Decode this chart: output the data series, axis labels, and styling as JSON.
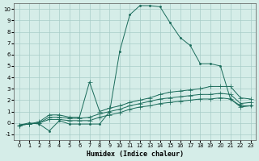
{
  "xlabel": "Humidex (Indice chaleur)",
  "bg_color": "#d5ede8",
  "grid_color": "#a8cdc8",
  "line_color": "#1a6b5a",
  "xlim": [
    -0.5,
    23.5
  ],
  "ylim": [
    -1.5,
    10.5
  ],
  "xticks": [
    0,
    1,
    2,
    3,
    4,
    5,
    6,
    7,
    8,
    9,
    10,
    11,
    12,
    13,
    14,
    15,
    16,
    17,
    18,
    19,
    20,
    21,
    22,
    23
  ],
  "yticks": [
    -1,
    0,
    1,
    2,
    3,
    4,
    5,
    6,
    7,
    8,
    9,
    10
  ],
  "series": [
    [
      -0.2,
      0.0,
      -0.1,
      -0.7,
      0.2,
      -0.1,
      -0.1,
      -0.1,
      -0.1,
      1.0,
      6.3,
      9.5,
      10.3,
      10.3,
      10.2,
      8.8,
      7.5,
      6.8,
      5.2,
      5.2,
      5.0,
      2.1,
      1.5,
      1.5
    ],
    [
      -0.2,
      -0.1,
      0.1,
      0.7,
      0.7,
      0.5,
      0.5,
      3.6,
      1.0,
      1.3,
      1.5,
      1.8,
      2.0,
      2.2,
      2.5,
      2.7,
      2.8,
      2.9,
      3.0,
      3.2,
      3.2,
      3.2,
      2.2,
      2.1
    ],
    [
      -0.2,
      -0.1,
      0.0,
      0.5,
      0.5,
      0.4,
      0.4,
      0.5,
      0.8,
      1.0,
      1.2,
      1.5,
      1.7,
      1.9,
      2.1,
      2.2,
      2.3,
      2.4,
      2.5,
      2.5,
      2.6,
      2.5,
      1.7,
      1.8
    ],
    [
      -0.2,
      -0.1,
      0.0,
      0.3,
      0.3,
      0.2,
      0.2,
      0.2,
      0.5,
      0.7,
      0.9,
      1.2,
      1.4,
      1.5,
      1.7,
      1.8,
      1.9,
      2.0,
      2.1,
      2.1,
      2.2,
      2.1,
      1.4,
      1.5
    ]
  ]
}
